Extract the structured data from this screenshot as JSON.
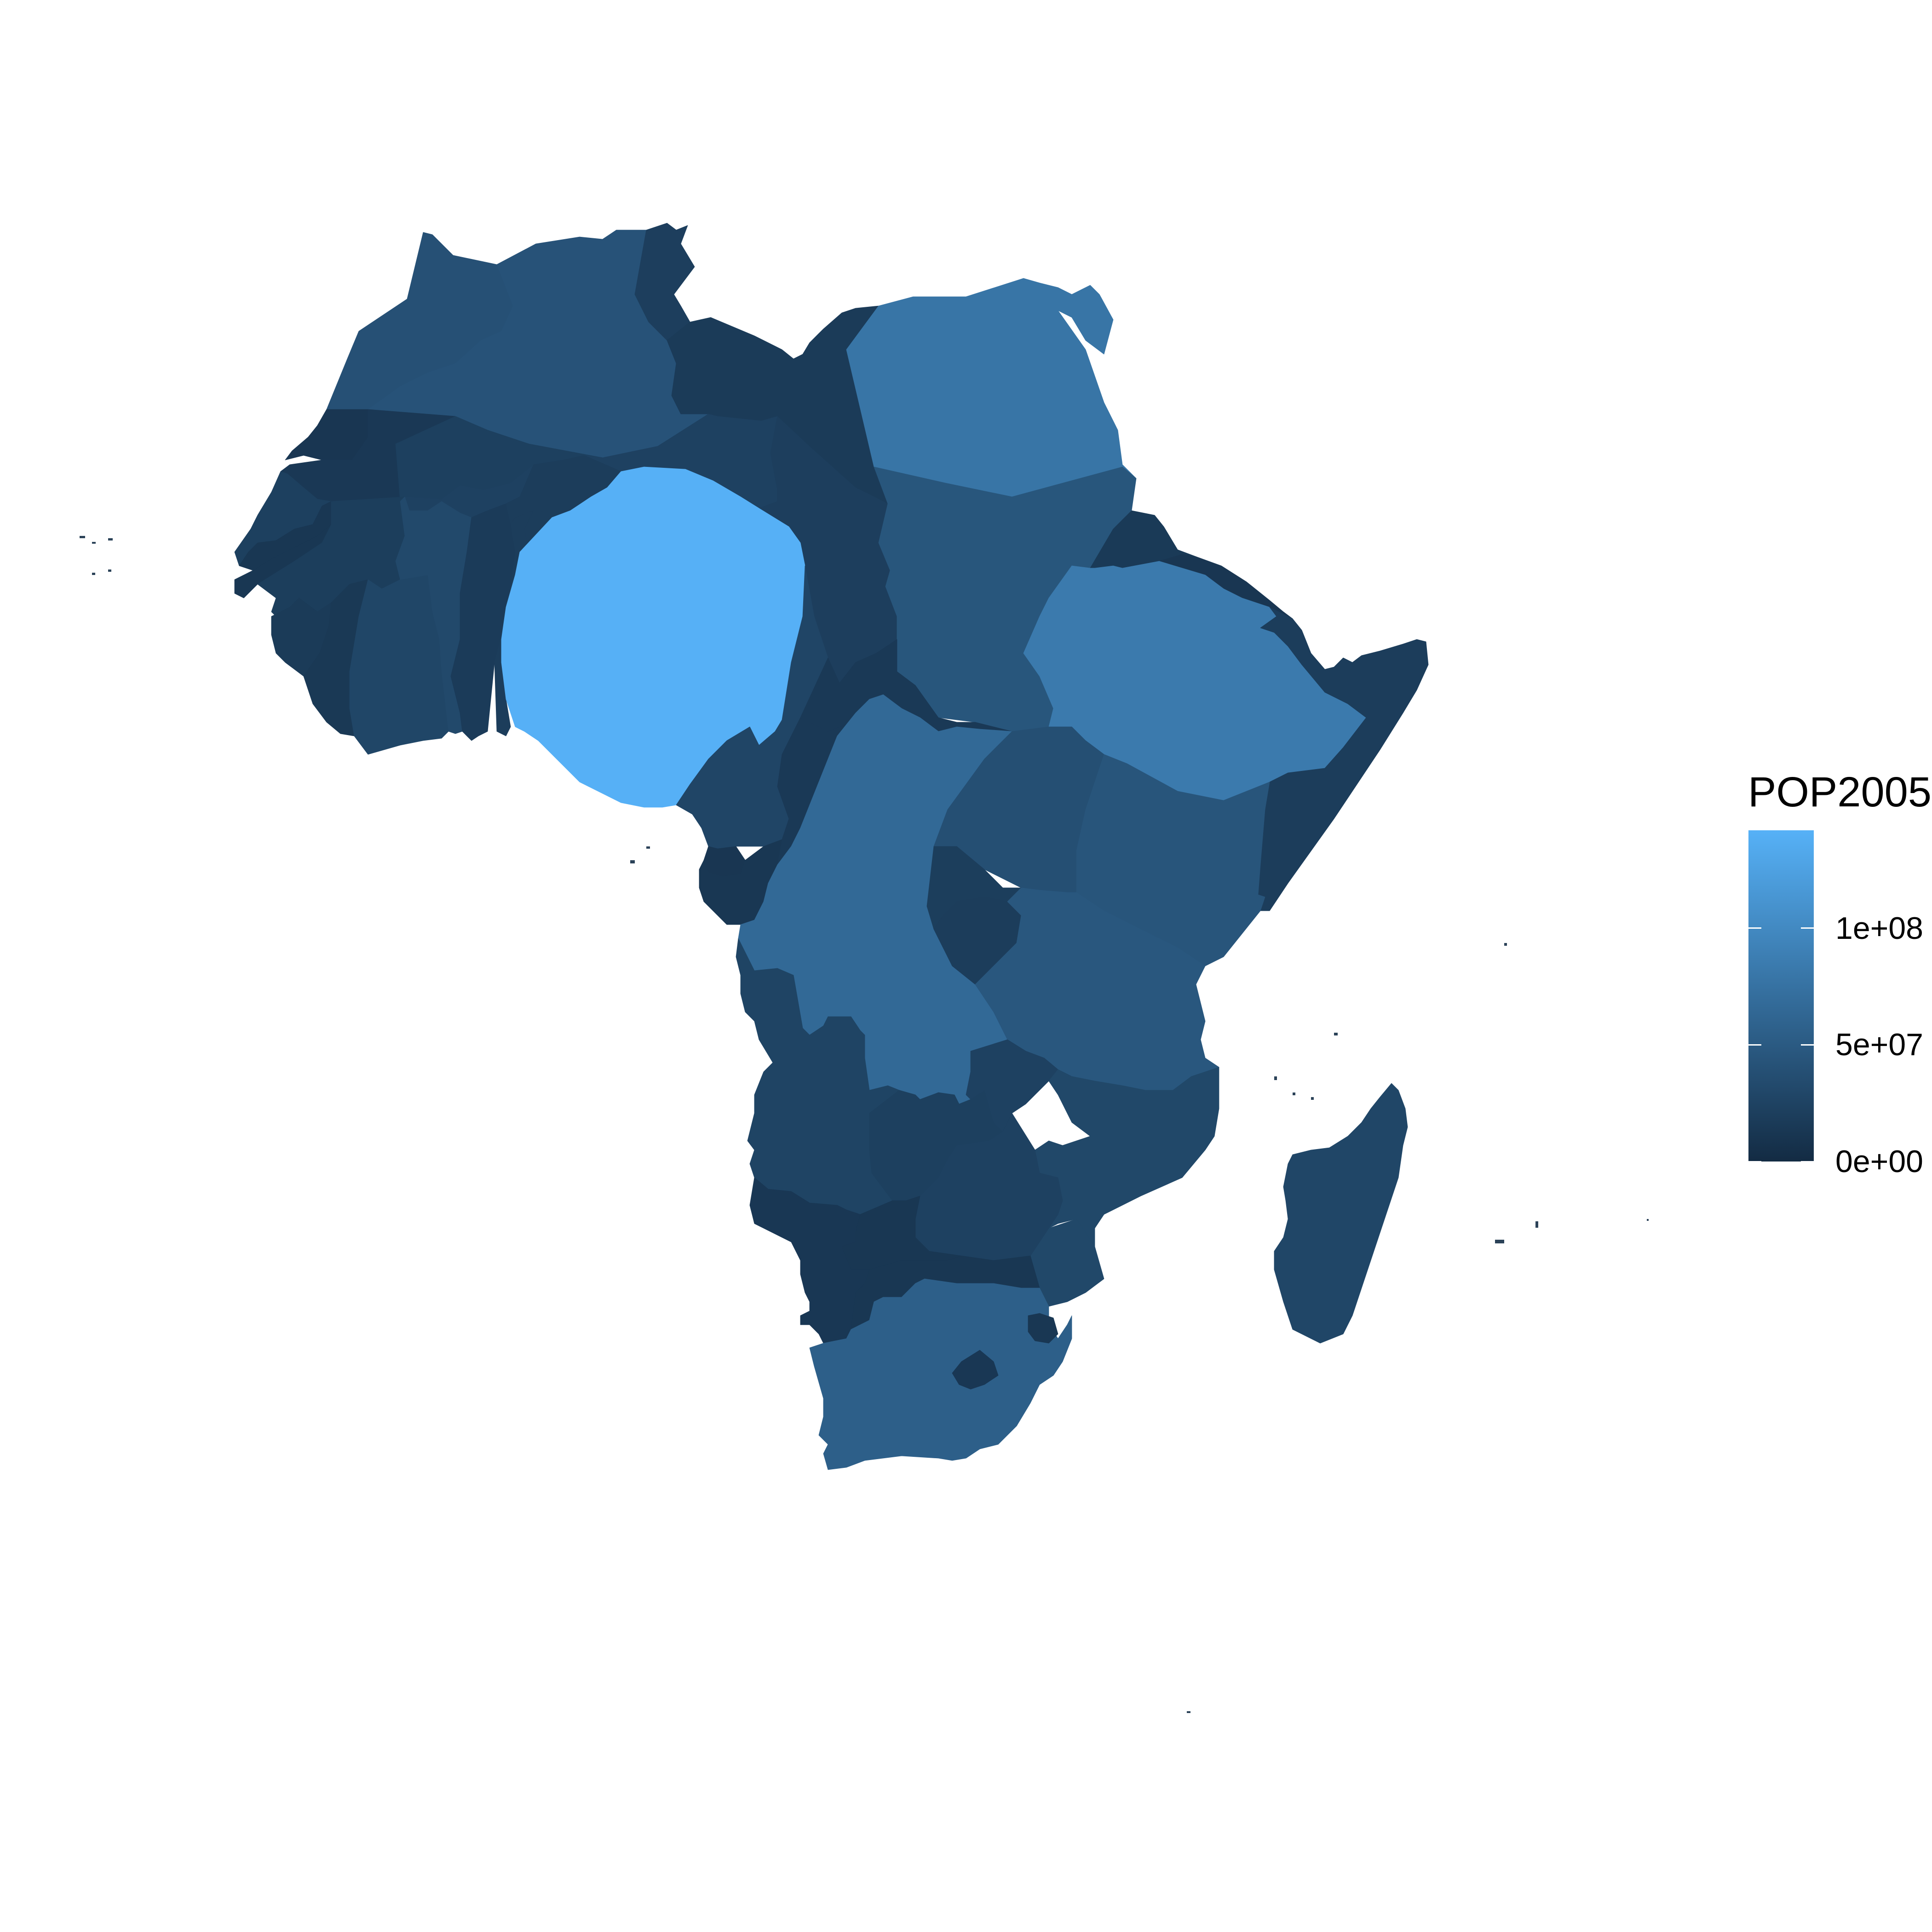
{
  "legend": {
    "title": "POP2005",
    "ticks": [
      {
        "label": "1e+08",
        "value": 100000000
      },
      {
        "label": "5e+07",
        "value": 50000000
      },
      {
        "label": "0e+00",
        "value": 0
      }
    ],
    "range": [
      0,
      142000000
    ],
    "color_low": "#132b43",
    "color_high": "#56b1f7"
  },
  "map": {
    "type": "choropleth",
    "variable": "POP2005",
    "regions": [
      {
        "id": "nigeria",
        "value": 141000000
      },
      {
        "id": "egypt",
        "value": 72800000
      },
      {
        "id": "ethiopia",
        "value": 78900000
      },
      {
        "id": "drc",
        "value": 58700000
      },
      {
        "id": "south-africa",
        "value": 47900000
      },
      {
        "id": "sudan",
        "value": 36900000
      },
      {
        "id": "tanzania",
        "value": 38500000
      },
      {
        "id": "kenya",
        "value": 35600000
      },
      {
        "id": "algeria",
        "value": 32900000
      },
      {
        "id": "morocco",
        "value": 30500000
      },
      {
        "id": "uganda",
        "value": 28900000
      },
      {
        "id": "ghana",
        "value": 22100000
      },
      {
        "id": "mozambique",
        "value": 20500000
      },
      {
        "id": "madagascar",
        "value": 18600000
      },
      {
        "id": "cote-divoire",
        "value": 18500000
      },
      {
        "id": "cameroon",
        "value": 17800000
      },
      {
        "id": "angola",
        "value": 16100000
      },
      {
        "id": "burkina-faso",
        "value": 13200000
      },
      {
        "id": "malawi",
        "value": 13200000
      },
      {
        "id": "niger",
        "value": 13300000
      },
      {
        "id": "mali",
        "value": 11600000
      },
      {
        "id": "zambia",
        "value": 11500000
      },
      {
        "id": "zimbabwe",
        "value": 13000000
      },
      {
        "id": "senegal",
        "value": 11300000
      },
      {
        "id": "chad",
        "value": 10100000
      },
      {
        "id": "tunisia",
        "value": 10100000
      },
      {
        "id": "guinea",
        "value": 9000000
      },
      {
        "id": "rwanda",
        "value": 9000000
      },
      {
        "id": "somalia",
        "value": 8200000
      },
      {
        "id": "benin",
        "value": 8400000
      },
      {
        "id": "burundi",
        "value": 7900000
      },
      {
        "id": "togo",
        "value": 6200000
      },
      {
        "id": "libya",
        "value": 5900000
      },
      {
        "id": "sierra-leone",
        "value": 5600000
      },
      {
        "id": "eritrea",
        "value": 4500000
      },
      {
        "id": "car",
        "value": 4200000
      },
      {
        "id": "congo",
        "value": 3600000
      },
      {
        "id": "liberia",
        "value": 3400000
      },
      {
        "id": "mauritania",
        "value": 3000000
      },
      {
        "id": "namibia",
        "value": 2000000
      },
      {
        "id": "botswana",
        "value": 1800000
      },
      {
        "id": "lesotho",
        "value": 2000000
      },
      {
        "id": "gambia",
        "value": 1600000
      },
      {
        "id": "guinea-bissau",
        "value": 1600000
      },
      {
        "id": "gabon",
        "value": 1300000
      },
      {
        "id": "swaziland",
        "value": 1100000
      },
      {
        "id": "djibouti",
        "value": 800000
      },
      {
        "id": "equatorial-guinea",
        "value": 500000
      },
      {
        "id": "western-sahara",
        "value": 400000
      }
    ]
  }
}
